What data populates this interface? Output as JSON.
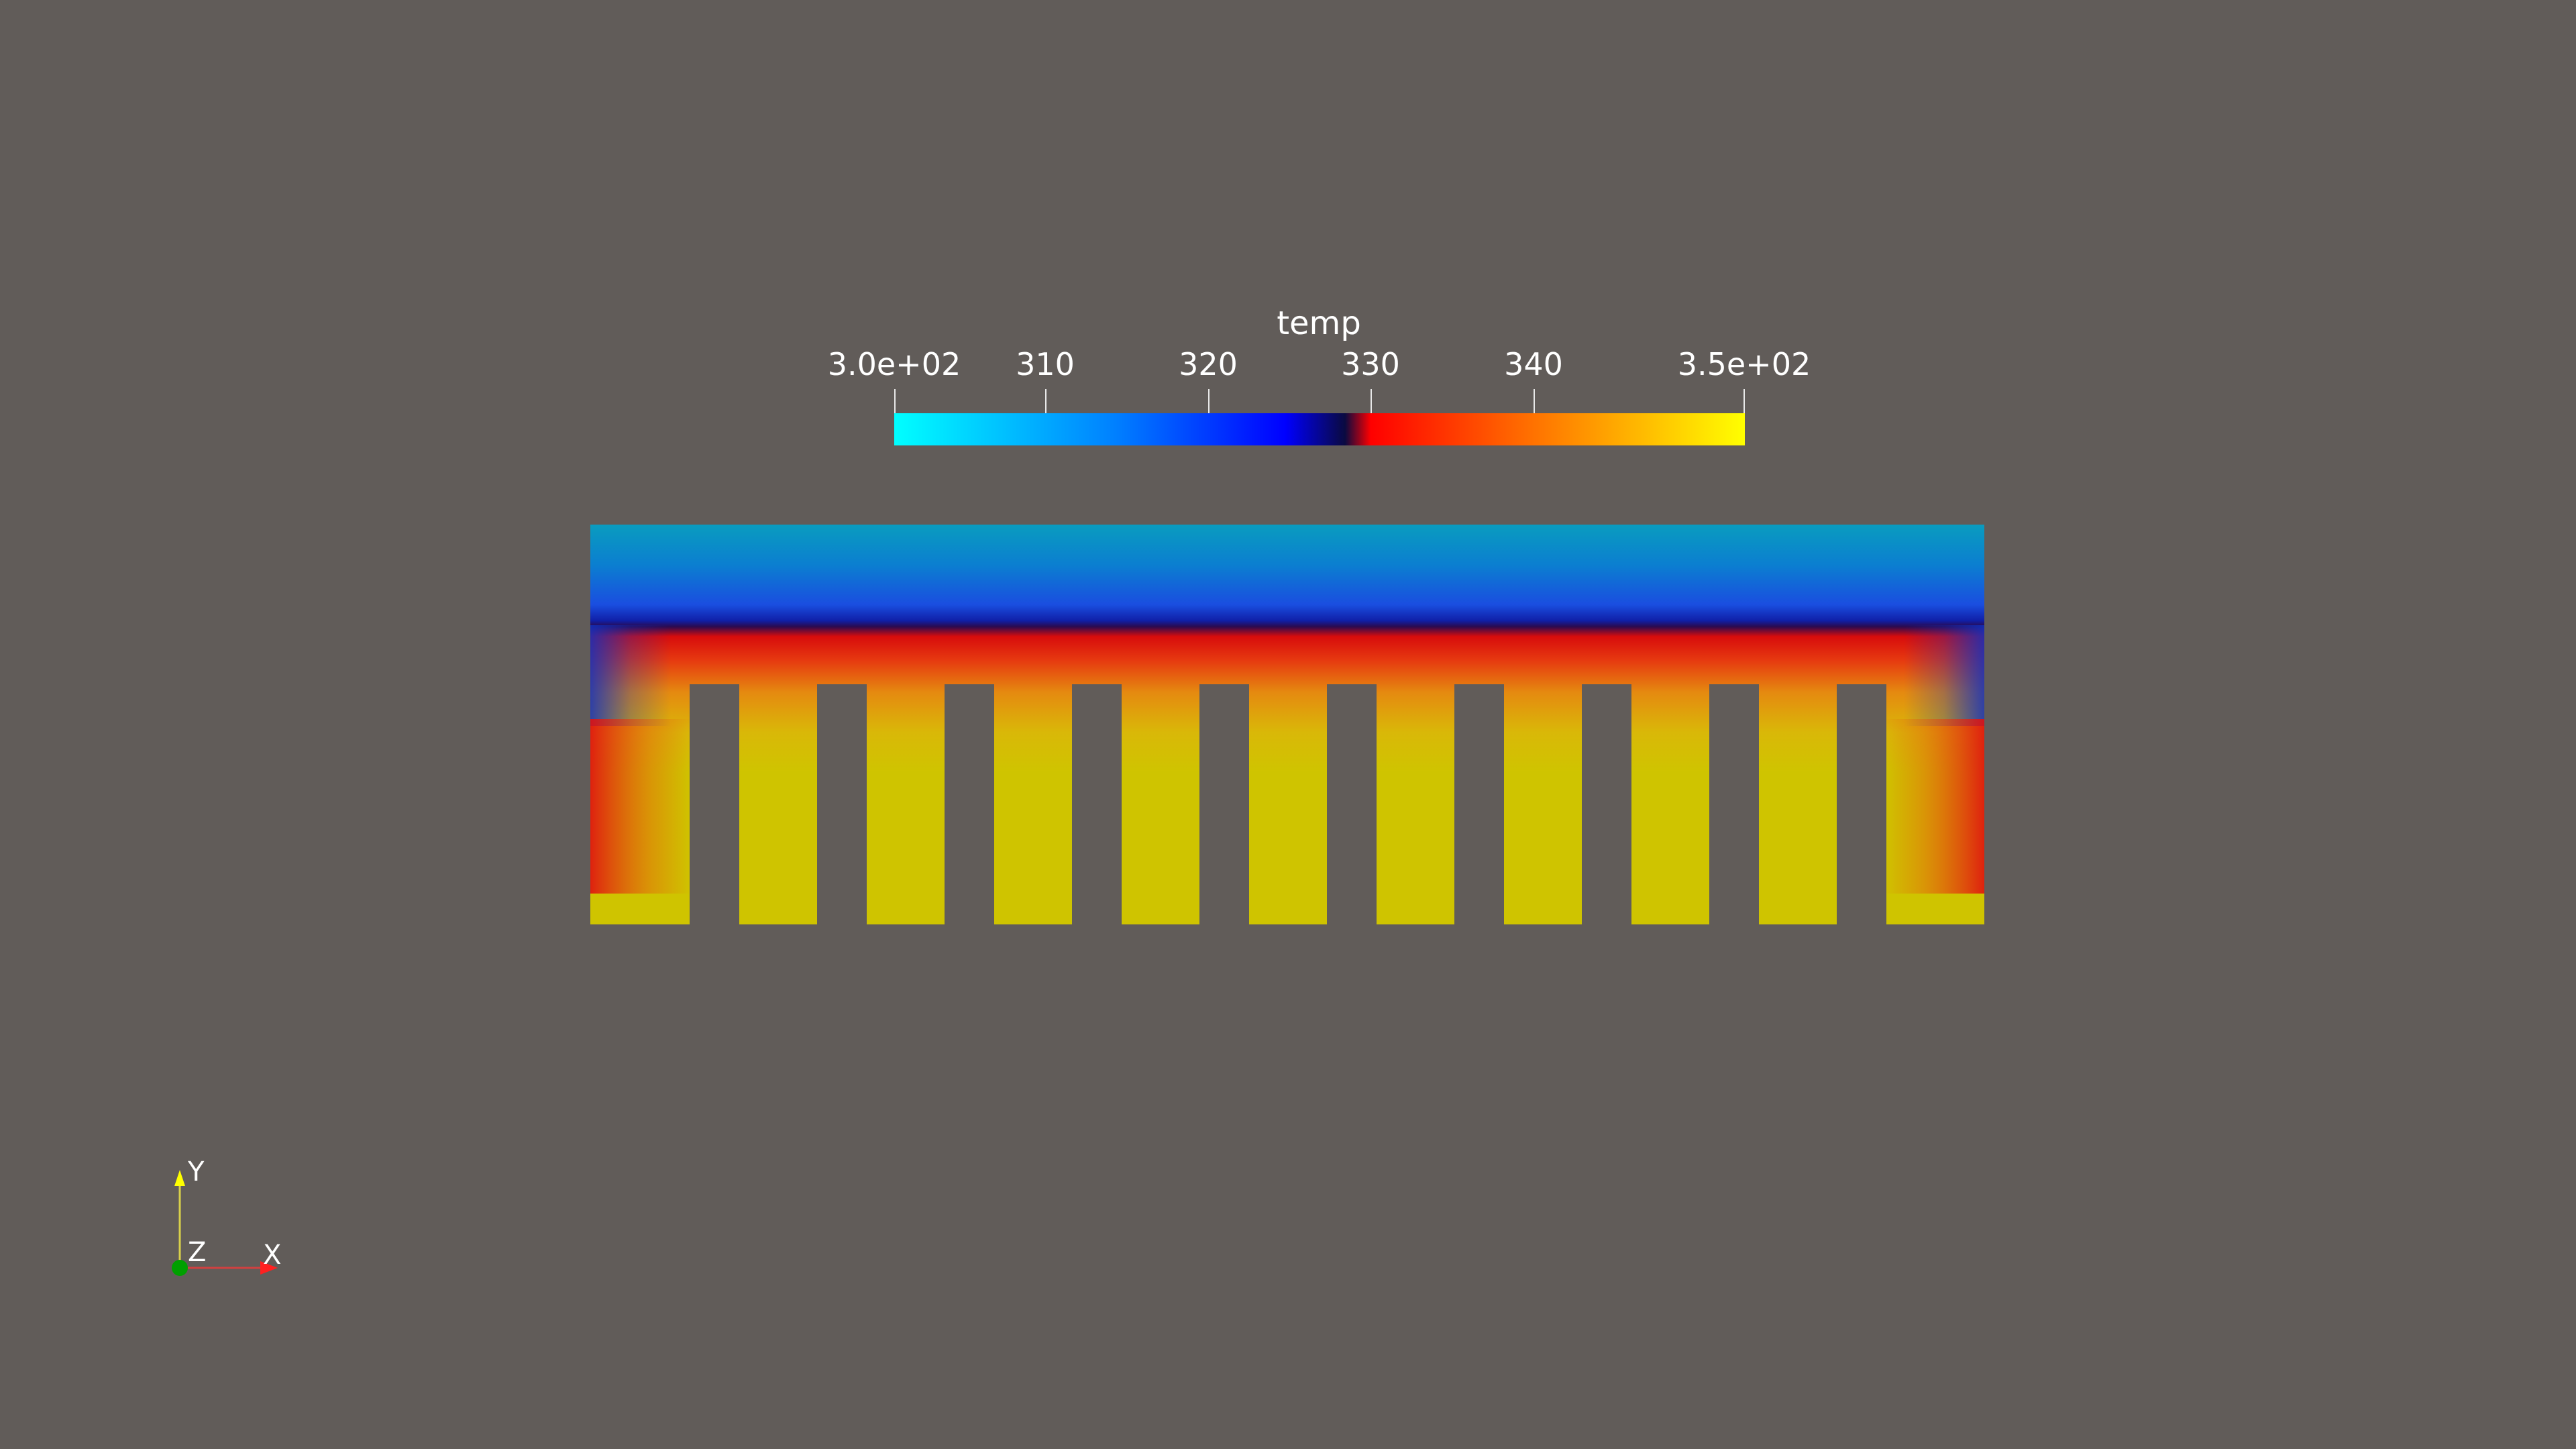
{
  "scalar_bar": {
    "title": "temp",
    "tick_labels": [
      "3.0e+02",
      "310",
      "320",
      "330",
      "340",
      "3.5e+02"
    ],
    "range": [
      300,
      350
    ],
    "colormap_stops": [
      {
        "value": 300,
        "color": "#00ffff"
      },
      {
        "value": 313,
        "color": "#0080ff"
      },
      {
        "value": 323,
        "color": "#0000ff"
      },
      {
        "value": 326.5,
        "color": "#0a0a40"
      },
      {
        "value": 328,
        "color": "#ff0000"
      },
      {
        "value": 336,
        "color": "#ff6000"
      },
      {
        "value": 350,
        "color": "#ffff00"
      }
    ]
  },
  "field": {
    "variable": "temp",
    "fin_count": 11,
    "colors": {
      "top_cool": "#0a9cbf",
      "mid_blue": "#1d3fd6",
      "dark_band": "#101060",
      "hot_red": "#e01010",
      "orange": "#f07010",
      "fin_yellow": "#cfc400",
      "background": "#615c59"
    }
  },
  "orientation_axes": {
    "x_label": "X",
    "y_label": "Y",
    "z_label": "Z",
    "x_color": "#ff2020",
    "y_color": "#ffff00",
    "z_color": "#00a000"
  }
}
